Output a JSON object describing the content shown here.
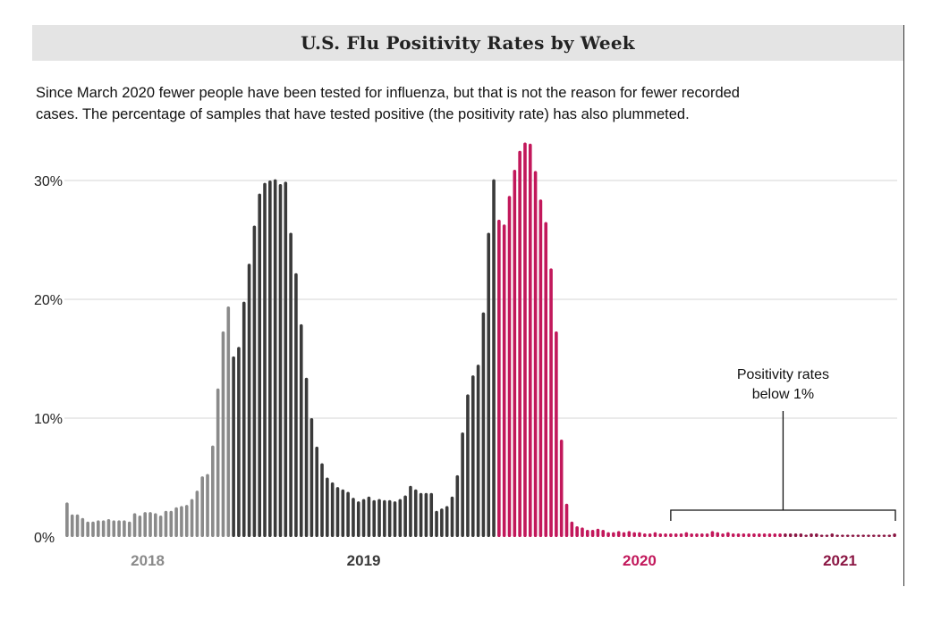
{
  "colors": {
    "y2018": "#8a8a8a",
    "y2019": "#3a3a3a",
    "y2020": "#c2185b",
    "y2021": "#8b1744",
    "grid": "#d5d5d5",
    "title_bg": "#e4e4e4"
  },
  "chart_data": {
    "type": "bar",
    "title": "U.S. Flu Positivity Rates by Week",
    "subtitle_line1": "Since March 2020 fewer people have been tested for influenza, but that is not the reason for fewer recorded",
    "subtitle_line2": "cases. The percentage of samples that have tested positive (the positivity rate) has also plummeted.",
    "ylim": [
      0,
      30
    ],
    "yticks": [
      {
        "value": 0,
        "label": "0%"
      },
      {
        "value": 10,
        "label": "10%"
      },
      {
        "value": 20,
        "label": "20%"
      },
      {
        "value": 30,
        "label": "30%"
      }
    ],
    "grid": true,
    "year_labels": [
      {
        "label": "2018",
        "color_key": "y2018"
      },
      {
        "label": "2019",
        "color_key": "y2019"
      },
      {
        "label": "2020",
        "color_key": "y2020"
      },
      {
        "label": "2021",
        "color_key": "y2021"
      }
    ],
    "annotation": {
      "line1": "Positivity rates",
      "line2": "below 1%",
      "start_index": 116,
      "end_index": 188
    },
    "series": [
      {
        "color_key": "y2018",
        "values": [
          2.9,
          1.9,
          1.9,
          1.6,
          1.3,
          1.3,
          1.4,
          1.4,
          1.5,
          1.4,
          1.4,
          1.4,
          1.3,
          2.0,
          1.8,
          2.1,
          2.1,
          2.0,
          1.8,
          2.2,
          2.2,
          2.5,
          2.6,
          2.7,
          3.2,
          3.9,
          5.1,
          5.3,
          7.7,
          12.5,
          17.3,
          19.4
        ]
      },
      {
        "color_key": "y2019",
        "values": [
          15.2,
          16.0,
          19.8,
          23.0,
          26.2,
          28.9,
          29.8,
          30.0,
          30.1,
          29.7,
          29.9,
          25.6,
          22.2,
          17.9,
          13.4,
          10.0,
          7.6,
          6.2,
          5.0,
          4.6,
          4.2,
          4.0,
          3.8,
          3.3,
          3.0,
          3.2,
          3.4,
          3.1,
          3.2,
          3.1,
          3.1,
          3.0,
          3.2,
          3.5,
          4.3,
          4.0,
          3.7,
          3.7,
          3.7,
          2.2,
          2.4,
          2.6,
          3.4,
          5.2,
          8.8,
          12.0,
          13.6,
          14.5,
          18.9,
          25.6,
          30.1
        ]
      },
      {
        "color_key": "y2020",
        "values": [
          26.7,
          26.3,
          28.7,
          30.9,
          32.5,
          33.2,
          33.1,
          30.8,
          28.4,
          26.5,
          22.6,
          17.3,
          8.2,
          2.8,
          1.3,
          0.9,
          0.8,
          0.6,
          0.6,
          0.7,
          0.6,
          0.4,
          0.4,
          0.5,
          0.4,
          0.5,
          0.4,
          0.4,
          0.3,
          0.3,
          0.4,
          0.3,
          0.3,
          0.3,
          0.3,
          0.3,
          0.4,
          0.3,
          0.3,
          0.3,
          0.3,
          0.5,
          0.4,
          0.3,
          0.4,
          0.3,
          0.3,
          0.3,
          0.3,
          0.3,
          0.3,
          0.3,
          0.3,
          0.3,
          0.3
        ]
      },
      {
        "color_key": "y2021",
        "values": [
          0.3,
          0.3,
          0.3,
          0.3,
          0.2,
          0.3,
          0.3,
          0.2,
          0.2,
          0.3,
          0.2,
          0.2,
          0.2,
          0.2,
          0.2,
          0.2,
          0.2,
          0.2,
          0.2,
          0.2,
          0.2,
          0.3
        ]
      }
    ]
  }
}
